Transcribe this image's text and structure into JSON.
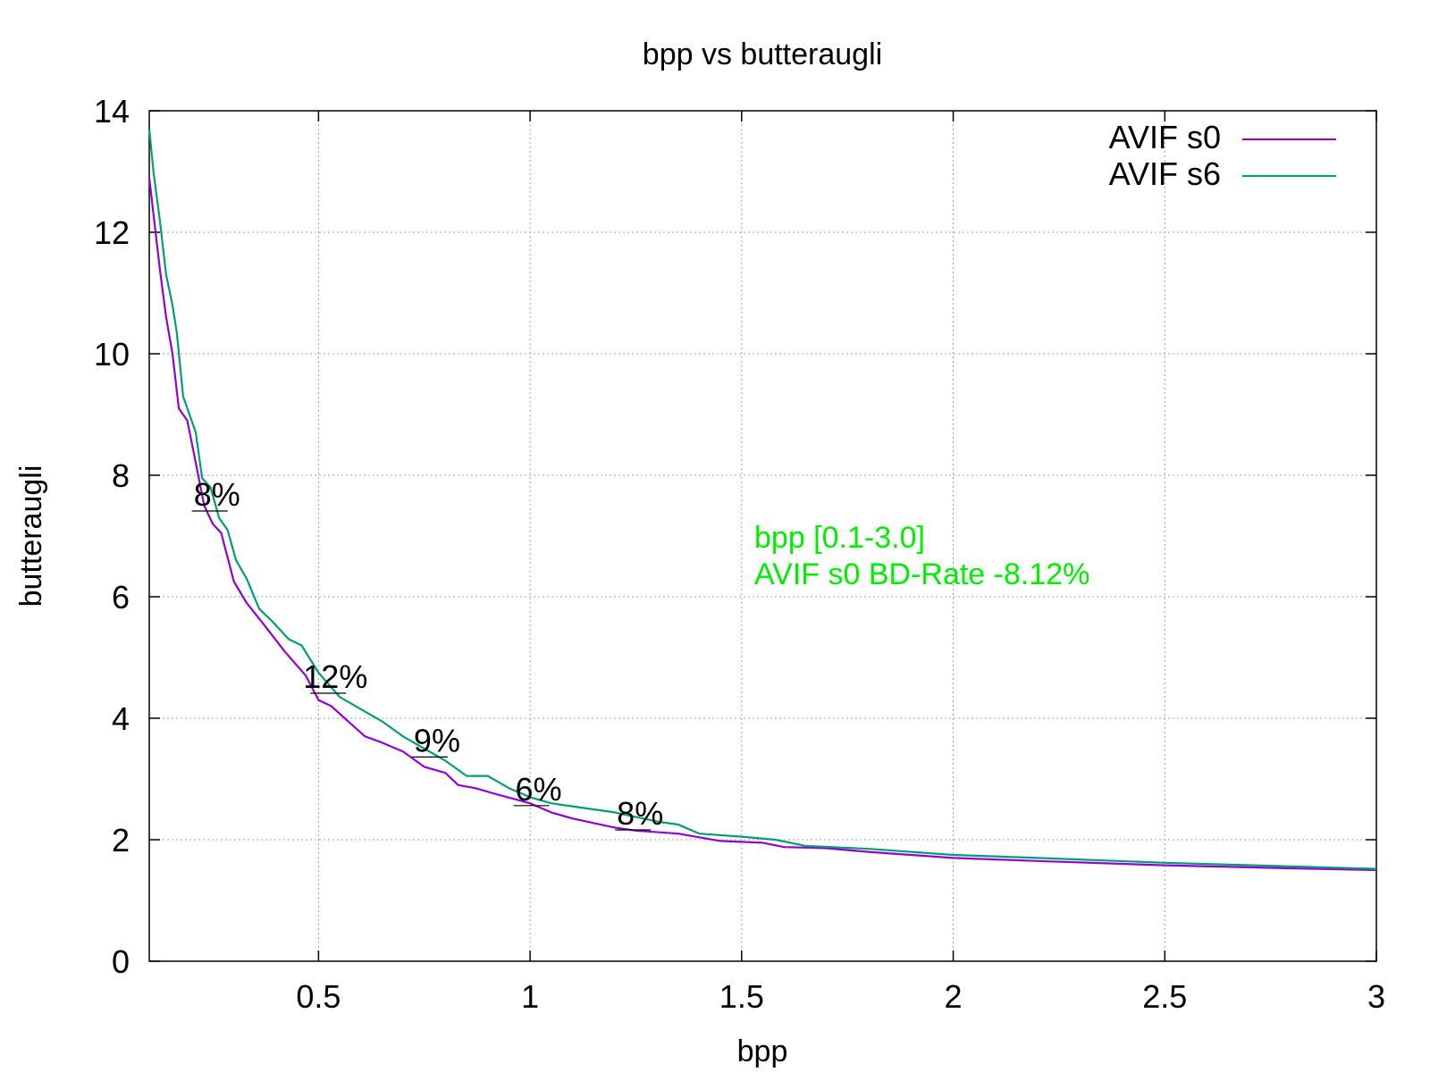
{
  "chart_data": {
    "type": "line",
    "title": "bpp vs butteraugli",
    "xlabel": "bpp",
    "ylabel": "butteraugli",
    "xlim": [
      0.1,
      3
    ],
    "ylim": [
      0,
      14
    ],
    "xticks": [
      0.5,
      1,
      1.5,
      2,
      2.5,
      3
    ],
    "xtick_labels": [
      "0.5",
      "1",
      "1.5",
      "2",
      "2.5",
      "3"
    ],
    "yticks": [
      0,
      2,
      4,
      6,
      8,
      10,
      12,
      14
    ],
    "ytick_labels": [
      "0",
      "2",
      "4",
      "6",
      "8",
      "10",
      "12",
      "14"
    ],
    "grid": true,
    "legend_position": "top-right",
    "series": [
      {
        "name": "AVIF s0",
        "color": "#9400d3",
        "points": [
          [
            0.1,
            12.9
          ],
          [
            0.11,
            12.3
          ],
          [
            0.125,
            11.4
          ],
          [
            0.14,
            10.6
          ],
          [
            0.155,
            10.0
          ],
          [
            0.17,
            9.1
          ],
          [
            0.19,
            8.9
          ],
          [
            0.21,
            8.2
          ],
          [
            0.23,
            7.5
          ],
          [
            0.25,
            7.2
          ],
          [
            0.27,
            7.05
          ],
          [
            0.3,
            6.25
          ],
          [
            0.33,
            5.9
          ],
          [
            0.37,
            5.55
          ],
          [
            0.42,
            5.1
          ],
          [
            0.47,
            4.7
          ],
          [
            0.5,
            4.3
          ],
          [
            0.53,
            4.2
          ],
          [
            0.57,
            3.95
          ],
          [
            0.61,
            3.7
          ],
          [
            0.65,
            3.6
          ],
          [
            0.7,
            3.45
          ],
          [
            0.75,
            3.2
          ],
          [
            0.8,
            3.1
          ],
          [
            0.83,
            2.9
          ],
          [
            0.87,
            2.85
          ],
          [
            0.92,
            2.75
          ],
          [
            1.0,
            2.6
          ],
          [
            1.05,
            2.45
          ],
          [
            1.1,
            2.35
          ],
          [
            1.2,
            2.2
          ],
          [
            1.25,
            2.15
          ],
          [
            1.35,
            2.1
          ],
          [
            1.45,
            1.98
          ],
          [
            1.55,
            1.95
          ],
          [
            1.6,
            1.88
          ],
          [
            1.65,
            1.87
          ],
          [
            1.7,
            1.86
          ],
          [
            1.8,
            1.8
          ],
          [
            2.0,
            1.7
          ],
          [
            2.2,
            1.65
          ],
          [
            2.5,
            1.58
          ],
          [
            2.8,
            1.53
          ],
          [
            3.0,
            1.5
          ]
        ]
      },
      {
        "name": "AVIF s6",
        "color": "#009e73",
        "points": [
          [
            0.1,
            13.7
          ],
          [
            0.11,
            13.0
          ],
          [
            0.125,
            12.2
          ],
          [
            0.14,
            11.3
          ],
          [
            0.155,
            10.8
          ],
          [
            0.165,
            10.35
          ],
          [
            0.18,
            9.3
          ],
          [
            0.195,
            9.0
          ],
          [
            0.21,
            8.7
          ],
          [
            0.225,
            7.95
          ],
          [
            0.245,
            7.8
          ],
          [
            0.265,
            7.3
          ],
          [
            0.285,
            7.1
          ],
          [
            0.305,
            6.6
          ],
          [
            0.33,
            6.3
          ],
          [
            0.36,
            5.8
          ],
          [
            0.39,
            5.6
          ],
          [
            0.43,
            5.3
          ],
          [
            0.46,
            5.2
          ],
          [
            0.5,
            4.75
          ],
          [
            0.55,
            4.35
          ],
          [
            0.6,
            4.15
          ],
          [
            0.65,
            3.95
          ],
          [
            0.7,
            3.7
          ],
          [
            0.75,
            3.5
          ],
          [
            0.8,
            3.3
          ],
          [
            0.85,
            3.05
          ],
          [
            0.9,
            3.05
          ],
          [
            0.95,
            2.85
          ],
          [
            1.0,
            2.7
          ],
          [
            1.05,
            2.6
          ],
          [
            1.1,
            2.55
          ],
          [
            1.2,
            2.45
          ],
          [
            1.3,
            2.3
          ],
          [
            1.35,
            2.25
          ],
          [
            1.4,
            2.1
          ],
          [
            1.5,
            2.05
          ],
          [
            1.58,
            2.0
          ],
          [
            1.65,
            1.9
          ],
          [
            1.8,
            1.85
          ],
          [
            2.0,
            1.75
          ],
          [
            2.2,
            1.7
          ],
          [
            2.5,
            1.62
          ],
          [
            2.8,
            1.56
          ],
          [
            3.0,
            1.52
          ]
        ]
      }
    ],
    "annotations": [
      {
        "text": "8%",
        "x": 0.26,
        "y": 7.5
      },
      {
        "text": "12%",
        "x": 0.54,
        "y": 4.5
      },
      {
        "text": "9%",
        "x": 0.78,
        "y": 3.45
      },
      {
        "text": "6%",
        "x": 1.02,
        "y": 2.65
      },
      {
        "text": "8%",
        "x": 1.26,
        "y": 2.25
      }
    ],
    "bd_rate_box": {
      "line1": "bpp [0.1-3.0]",
      "line2": "AVIF s0 BD-Rate -8.12%",
      "color": "#00ee00"
    }
  }
}
